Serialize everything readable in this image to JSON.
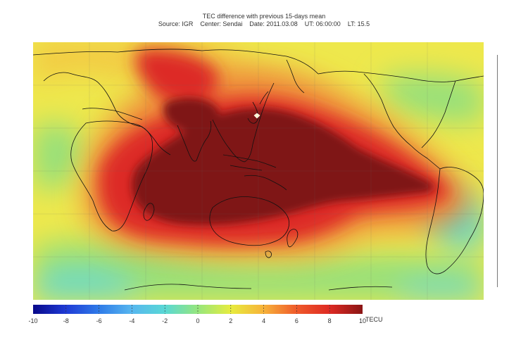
{
  "title": {
    "line1": "TEC difference with previous 15-days mean",
    "line2": "Source: IGR    Center: Sendai    Date: 2011.03.08    UT: 06:00:00    LT: 15.5"
  },
  "colorbar": {
    "min": -10,
    "max": 10,
    "unit": "TECU",
    "ticks": [
      "-10",
      "-8",
      "-6",
      "-4",
      "-2",
      "0",
      "2",
      "4",
      "6",
      "8",
      "10"
    ],
    "colors": [
      "#08088a",
      "#1f3bd6",
      "#2f7be8",
      "#57b7ef",
      "#59d8d5",
      "#96e67d",
      "#e7ec3e",
      "#f7b23a",
      "#ef5a2b",
      "#de2a23",
      "#8a1515"
    ]
  },
  "map": {
    "center_marker": "Sendai",
    "background_color": "#eee84c",
    "anomaly_palette": {
      "extreme_positive": "#7f1212",
      "strong_positive": "#dd2b25",
      "moderate_positive": "#ef8a3a",
      "slight_positive": "#f3c742",
      "neutral": "#dced4f",
      "slight_negative": "#96e07a",
      "moderate_negative": "#62d8cb"
    }
  }
}
